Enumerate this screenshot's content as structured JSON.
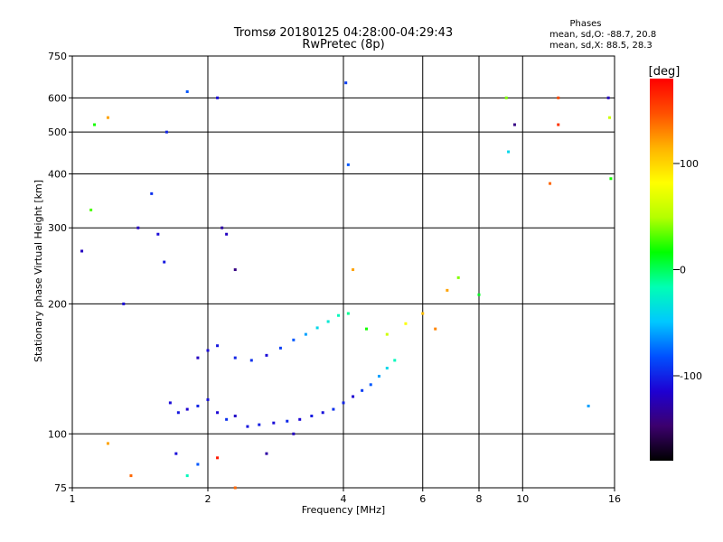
{
  "chart_data": {
    "type": "scatter",
    "title": "Tromsø 20180125 04:28:00-04:29:43",
    "subtitle": "RwPretec (8p)",
    "xlabel": "Frequency [MHz]",
    "ylabel": "Stationary phase Virtual Height [km]",
    "xscale": "log",
    "yscale": "log",
    "xlim": [
      1,
      16
    ],
    "ylim": [
      75,
      750
    ],
    "xticks": [
      1,
      2,
      4,
      6,
      8,
      10,
      16
    ],
    "yticks": [
      75,
      100,
      200,
      300,
      400,
      500,
      600,
      750
    ],
    "grid": true,
    "stats": {
      "heading": "Phases",
      "line1": "mean, sd,O: -88.7, 20.8",
      "line2": "mean, sd,X:  88.5, 28.3"
    },
    "colorbar": {
      "label": "[deg]",
      "range": [
        -180,
        180
      ],
      "ticks": [
        100,
        0,
        -100
      ],
      "colormap": [
        "#000000",
        "#3c006e",
        "#1e00d2",
        "#0050ff",
        "#00c8ff",
        "#00ffb4",
        "#00ff00",
        "#b4ff00",
        "#ffff00",
        "#ffb400",
        "#ff5000",
        "#ff0000"
      ]
    },
    "x_range_points_mhz": [
      1.0,
      16.0
    ],
    "clusters": [
      {
        "name": "O-trace",
        "points": [
          [
            1.65,
            118,
            -110
          ],
          [
            1.72,
            112,
            -105
          ],
          [
            1.8,
            114,
            -115
          ],
          [
            1.9,
            116,
            -100
          ],
          [
            2.0,
            120,
            -108
          ],
          [
            2.1,
            112,
            -112
          ],
          [
            2.2,
            108,
            -95
          ],
          [
            2.3,
            110,
            -118
          ],
          [
            2.45,
            104,
            -106
          ],
          [
            2.6,
            105,
            -102
          ],
          [
            2.8,
            106,
            -110
          ],
          [
            3.0,
            107,
            -98
          ],
          [
            3.2,
            108,
            -112
          ],
          [
            3.4,
            110,
            -104
          ],
          [
            3.6,
            112,
            -108
          ],
          [
            3.8,
            114,
            -95
          ],
          [
            4.0,
            118,
            -100
          ],
          [
            4.2,
            122,
            -115
          ],
          [
            4.4,
            126,
            -90
          ],
          [
            4.6,
            130,
            -80
          ],
          [
            4.8,
            136,
            -60
          ],
          [
            5.0,
            142,
            -40
          ],
          [
            5.2,
            148,
            -20
          ]
        ]
      },
      {
        "name": "X-trace",
        "points": [
          [
            1.9,
            150,
            -120
          ],
          [
            2.0,
            156,
            -110
          ],
          [
            2.1,
            160,
            -105
          ],
          [
            2.3,
            150,
            -100
          ],
          [
            2.5,
            148,
            -95
          ],
          [
            2.7,
            152,
            -110
          ],
          [
            2.9,
            158,
            -90
          ],
          [
            3.1,
            165,
            -80
          ],
          [
            3.3,
            170,
            -60
          ],
          [
            3.5,
            176,
            -40
          ],
          [
            3.7,
            182,
            -30
          ],
          [
            3.9,
            188,
            -20
          ],
          [
            4.1,
            190,
            -10
          ],
          [
            4.5,
            175,
            20
          ],
          [
            5.0,
            170,
            60
          ],
          [
            5.5,
            180,
            80
          ],
          [
            6.0,
            190,
            110
          ],
          [
            6.4,
            175,
            130
          ],
          [
            6.8,
            215,
            120
          ],
          [
            7.2,
            230,
            40
          ],
          [
            8.0,
            210,
            10
          ]
        ]
      },
      {
        "name": "F-region echoes",
        "points": [
          [
            1.05,
            265,
            -120
          ],
          [
            1.1,
            330,
            30
          ],
          [
            1.12,
            520,
            20
          ],
          [
            1.2,
            540,
            120
          ],
          [
            1.3,
            200,
            -110
          ],
          [
            1.4,
            300,
            -120
          ],
          [
            1.5,
            360,
            -95
          ],
          [
            1.55,
            290,
            -110
          ],
          [
            1.6,
            250,
            -105
          ],
          [
            1.62,
            500,
            -100
          ],
          [
            1.8,
            620,
            -80
          ],
          [
            2.1,
            600,
            -110
          ],
          [
            2.15,
            300,
            -130
          ],
          [
            2.2,
            290,
            -120
          ],
          [
            2.3,
            240,
            -140
          ],
          [
            4.05,
            650,
            -90
          ],
          [
            4.1,
            420,
            -80
          ],
          [
            4.2,
            240,
            120
          ],
          [
            9.2,
            600,
            40
          ],
          [
            9.3,
            450,
            -40
          ],
          [
            9.6,
            520,
            -140
          ],
          [
            11.5,
            380,
            140
          ],
          [
            12.0,
            600,
            150
          ],
          [
            12.0,
            520,
            160
          ],
          [
            15.5,
            600,
            -120
          ],
          [
            15.6,
            540,
            60
          ],
          [
            15.7,
            390,
            20
          ]
        ]
      },
      {
        "name": "E-region echoes",
        "points": [
          [
            1.2,
            95,
            120
          ],
          [
            1.35,
            80,
            140
          ],
          [
            1.7,
            90,
            -110
          ],
          [
            1.8,
            80,
            -20
          ],
          [
            1.9,
            85,
            -80
          ],
          [
            2.1,
            88,
            170
          ],
          [
            2.3,
            75,
            140
          ],
          [
            2.7,
            90,
            -130
          ],
          [
            3.1,
            100,
            -120
          ],
          [
            14.0,
            116,
            -60
          ]
        ]
      }
    ]
  }
}
